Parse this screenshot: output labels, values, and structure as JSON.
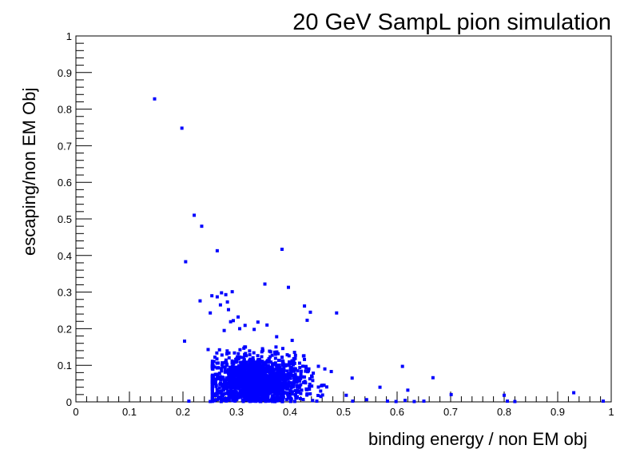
{
  "chart_data": {
    "type": "scatter",
    "title": "20 GeV SampL pion simulation",
    "xlabel": "binding energy / non EM obj",
    "ylabel": "escaping/non EM Obj",
    "xlim": [
      0,
      1
    ],
    "ylim": [
      0,
      1
    ],
    "x_ticks": [
      "0",
      "0.1",
      "0.2",
      "0.3",
      "0.4",
      "0.5",
      "0.6",
      "0.7",
      "0.8",
      "0.9",
      "1"
    ],
    "y_ticks": [
      "0",
      "0.1",
      "0.2",
      "0.3",
      "0.4",
      "0.5",
      "0.6",
      "0.7",
      "0.8",
      "0.9",
      "1"
    ],
    "grid": false,
    "marker_color": "#0000ff",
    "series": [
      {
        "points": [
          [
            0.147,
            0.828
          ],
          [
            0.198,
            0.748
          ],
          [
            0.221,
            0.51
          ],
          [
            0.235,
            0.48
          ],
          [
            0.205,
            0.383
          ],
          [
            0.264,
            0.413
          ],
          [
            0.385,
            0.417
          ],
          [
            0.353,
            0.322
          ],
          [
            0.397,
            0.313
          ],
          [
            0.254,
            0.29
          ],
          [
            0.272,
            0.298
          ],
          [
            0.28,
            0.293
          ],
          [
            0.292,
            0.301
          ],
          [
            0.232,
            0.276
          ],
          [
            0.264,
            0.287
          ],
          [
            0.27,
            0.265
          ],
          [
            0.283,
            0.273
          ],
          [
            0.251,
            0.243
          ],
          [
            0.285,
            0.252
          ],
          [
            0.427,
            0.262
          ],
          [
            0.438,
            0.245
          ],
          [
            0.487,
            0.243
          ],
          [
            0.289,
            0.219
          ],
          [
            0.294,
            0.222
          ],
          [
            0.303,
            0.232
          ],
          [
            0.316,
            0.209
          ],
          [
            0.34,
            0.218
          ],
          [
            0.357,
            0.21
          ],
          [
            0.432,
            0.223
          ],
          [
            0.203,
            0.166
          ],
          [
            0.247,
            0.143
          ],
          [
            0.277,
            0.195
          ],
          [
            0.306,
            0.2
          ],
          [
            0.333,
            0.198
          ],
          [
            0.375,
            0.178
          ],
          [
            0.404,
            0.168
          ],
          [
            0.61,
            0.097
          ],
          [
            0.667,
            0.066
          ],
          [
            0.516,
            0.065
          ],
          [
            0.437,
            0.063
          ],
          [
            0.465,
            0.09
          ],
          [
            0.568,
            0.04
          ],
          [
            0.62,
            0.032
          ],
          [
            0.701,
            0.02
          ],
          [
            0.8,
            0.018
          ],
          [
            0.93,
            0.025
          ],
          [
            0.985,
            0.002
          ],
          [
            0.211,
            0.002
          ],
          [
            0.251,
            0.001
          ],
          [
            0.45,
            0.002
          ],
          [
            0.505,
            0.018
          ],
          [
            0.517,
            0.002
          ],
          [
            0.543,
            0.006
          ],
          [
            0.582,
            0.002
          ],
          [
            0.598,
            0.001
          ],
          [
            0.615,
            0.004
          ],
          [
            0.632,
            0.001
          ],
          [
            0.65,
            0.002
          ],
          [
            0.806,
            0.002
          ],
          [
            0.82,
            0.001
          ]
        ],
        "cluster": {
          "x_center": 0.335,
          "y_center": 0.055,
          "x_spread": 0.075,
          "y_spread": 0.05,
          "x_range": [
            0.255,
            0.48
          ],
          "y_range": [
            0.0,
            0.15
          ],
          "count": 1600
        }
      }
    ]
  }
}
